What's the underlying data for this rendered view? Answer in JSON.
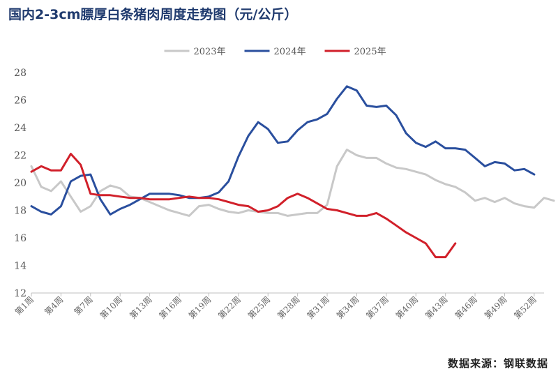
{
  "title": "国内2-3cm膘厚白条猪肉周度走势图（元/公斤）",
  "source": "数据来源：钢联数据",
  "chart_data": {
    "type": "line",
    "title": "国内2-3cm膘厚白条猪肉周度走势图（元/公斤）",
    "xlabel": "",
    "ylabel": "",
    "ylim": [
      12,
      28
    ],
    "yticks": [
      12,
      14,
      16,
      18,
      20,
      22,
      24,
      26,
      28
    ],
    "xlim": [
      1,
      53
    ],
    "xtick_values": [
      1,
      4,
      7,
      10,
      13,
      16,
      19,
      22,
      25,
      28,
      31,
      34,
      37,
      40,
      43,
      46,
      49,
      52
    ],
    "xtick_labels": [
      "第1周",
      "第4周",
      "第7周",
      "第10周",
      "第13周",
      "第16周",
      "第19周",
      "第22周",
      "第25周",
      "第28周",
      "第31周",
      "第34周",
      "第37周",
      "第40周",
      "第43周",
      "第46周",
      "第49周",
      "第52周"
    ],
    "legend_position": "top-center",
    "grid": false,
    "series": [
      {
        "name": "2023年",
        "color": "#c8c8c8",
        "values": [
          21.2,
          19.7,
          19.4,
          20.1,
          19.0,
          17.9,
          18.3,
          19.4,
          19.8,
          19.6,
          19.0,
          18.9,
          18.6,
          18.3,
          18.0,
          17.8,
          17.6,
          18.3,
          18.4,
          18.1,
          17.9,
          17.8,
          18.0,
          17.9,
          17.8,
          17.8,
          17.6,
          17.7,
          17.8,
          17.8,
          18.4,
          21.2,
          22.4,
          22.0,
          21.8,
          21.8,
          21.4,
          21.1,
          21.0,
          20.8,
          20.6,
          20.2,
          19.9,
          19.7,
          19.3,
          18.7,
          18.9,
          18.6,
          18.9,
          18.5,
          18.3,
          18.2,
          18.9,
          18.7
        ]
      },
      {
        "name": "2024年",
        "color": "#2a4f9e",
        "values": [
          18.3,
          17.9,
          17.7,
          18.3,
          20.1,
          20.5,
          20.6,
          18.8,
          17.7,
          18.1,
          18.4,
          18.8,
          19.2,
          19.2,
          19.2,
          19.1,
          18.9,
          18.9,
          19.0,
          19.3,
          20.1,
          21.9,
          23.4,
          24.4,
          23.9,
          22.9,
          23.0,
          23.8,
          24.4,
          24.6,
          25.0,
          26.1,
          27.0,
          26.7,
          25.6,
          25.5,
          25.6,
          24.9,
          23.6,
          22.9,
          22.6,
          23.0,
          22.5,
          22.5,
          22.4,
          21.8,
          21.2,
          21.5,
          21.4,
          20.9,
          21.0,
          20.6
        ]
      },
      {
        "name": "2025年",
        "color": "#d1202a",
        "values": [
          20.8,
          21.2,
          20.9,
          20.9,
          22.1,
          21.3,
          19.2,
          19.1,
          19.1,
          19.0,
          18.9,
          18.9,
          18.8,
          18.8,
          18.8,
          18.9,
          19.0,
          18.9,
          18.9,
          18.8,
          18.6,
          18.4,
          18.3,
          17.9,
          18.0,
          18.3,
          18.9,
          19.2,
          18.9,
          18.5,
          18.1,
          18.0,
          17.8,
          17.6,
          17.6,
          17.8,
          17.4,
          16.9,
          16.4,
          16.0,
          15.6,
          14.6,
          14.6,
          15.6
        ]
      }
    ]
  }
}
